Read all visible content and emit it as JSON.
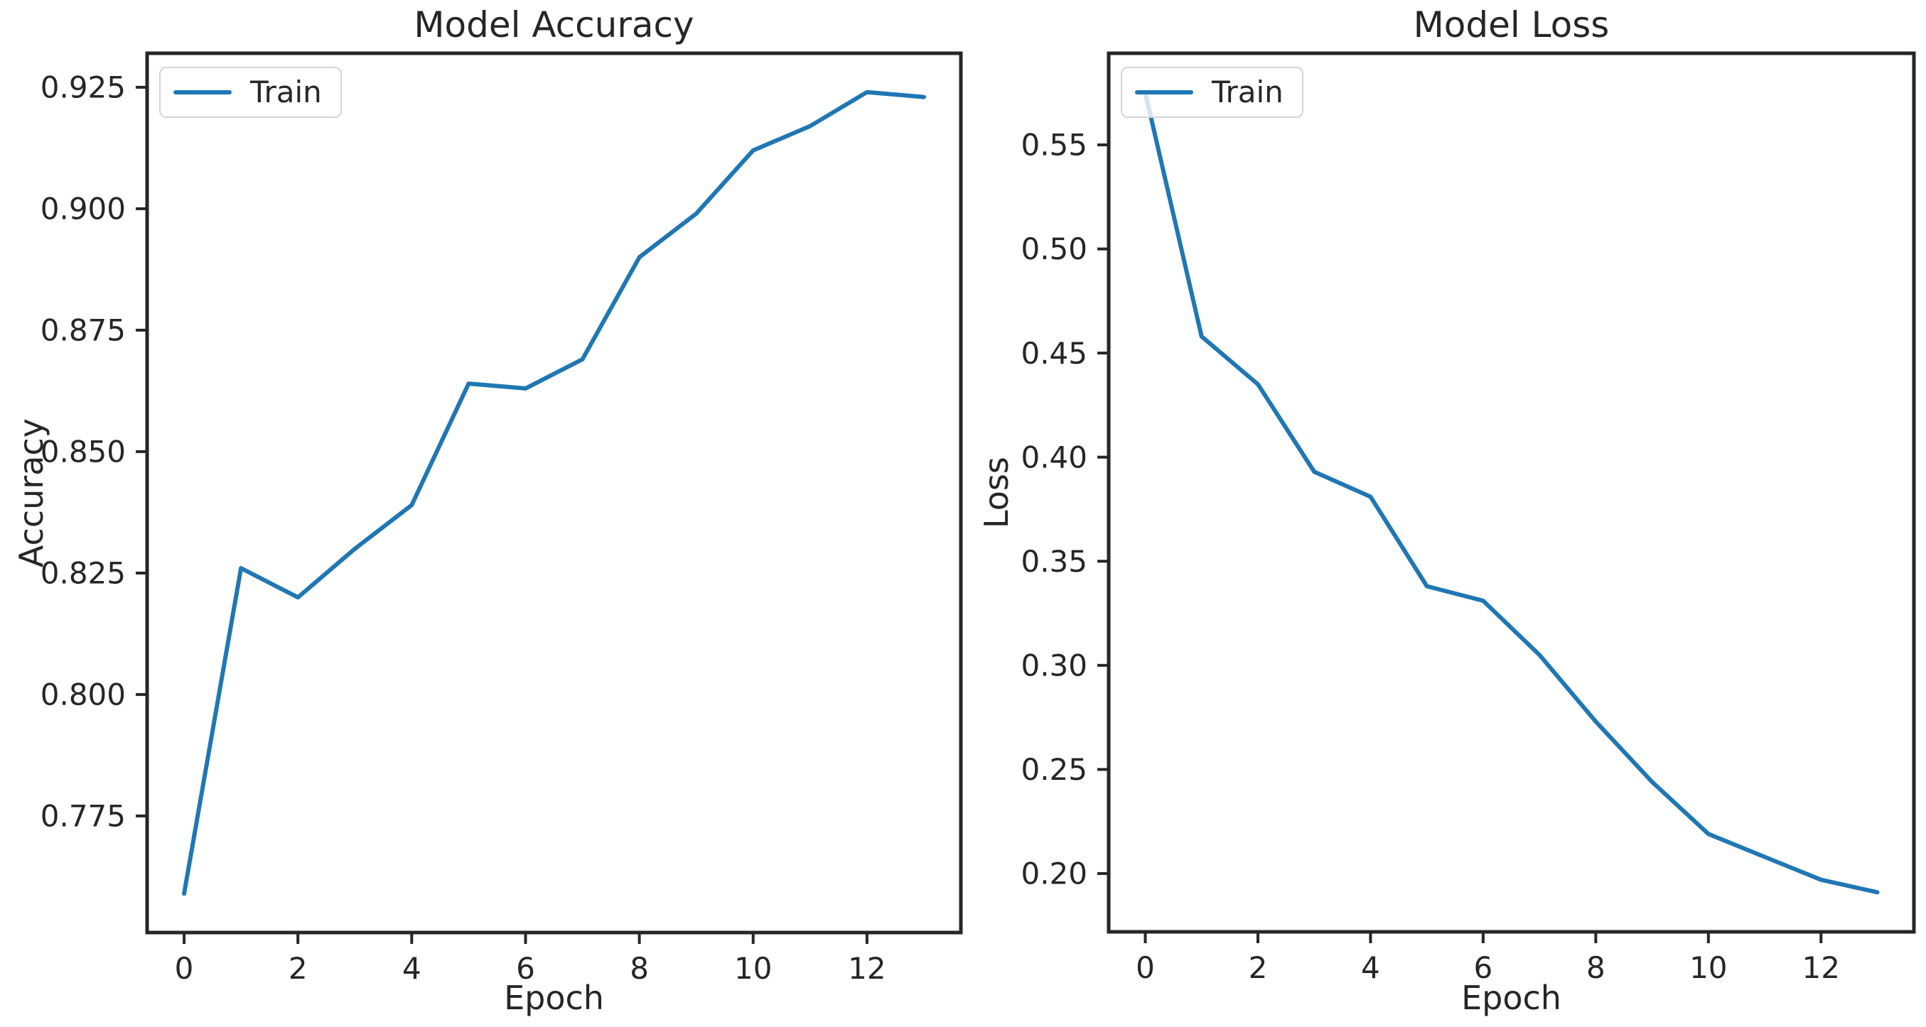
{
  "figure": {
    "background_color": "#ffffff",
    "accent_color": "#1f77b4",
    "axis_color": "#262626"
  },
  "chart_data": [
    {
      "type": "line",
      "title": "Model Accuracy",
      "xlabel": "Epoch",
      "ylabel": "Accuracy",
      "grid": false,
      "legend_position": "upper left",
      "x": [
        0,
        1,
        2,
        3,
        4,
        5,
        6,
        7,
        8,
        9,
        10,
        11,
        12,
        13
      ],
      "series": [
        {
          "name": "Train",
          "color": "#1f77b4",
          "values": [
            0.759,
            0.826,
            0.82,
            0.83,
            0.839,
            0.864,
            0.863,
            0.869,
            0.89,
            0.899,
            0.912,
            0.917,
            0.924,
            0.923
          ]
        }
      ],
      "xlim": [
        -0.65,
        13.65
      ],
      "ylim": [
        0.751,
        0.932
      ],
      "xtick_values": [
        0,
        2,
        4,
        6,
        8,
        10,
        12
      ],
      "xtick_labels": [
        "0",
        "2",
        "4",
        "6",
        "8",
        "10",
        "12"
      ],
      "ytick_values": [
        0.775,
        0.8,
        0.825,
        0.85,
        0.875,
        0.9,
        0.925
      ],
      "ytick_labels": [
        "0.775",
        "0.800",
        "0.825",
        "0.850",
        "0.875",
        "0.900",
        "0.925"
      ]
    },
    {
      "type": "line",
      "title": "Model Loss",
      "xlabel": "Epoch",
      "ylabel": "Loss",
      "grid": false,
      "legend_position": "upper left",
      "x": [
        0,
        1,
        2,
        3,
        4,
        5,
        6,
        7,
        8,
        9,
        10,
        11,
        12,
        13
      ],
      "series": [
        {
          "name": "Train",
          "color": "#1f77b4",
          "values": [
            0.575,
            0.458,
            0.435,
            0.393,
            0.381,
            0.338,
            0.331,
            0.305,
            0.273,
            0.244,
            0.219,
            0.208,
            0.197,
            0.191
          ]
        }
      ],
      "xlim": [
        -0.65,
        13.65
      ],
      "ylim": [
        0.172,
        0.594
      ],
      "xtick_values": [
        0,
        2,
        4,
        6,
        8,
        10,
        12
      ],
      "xtick_labels": [
        "0",
        "2",
        "4",
        "6",
        "8",
        "10",
        "12"
      ],
      "ytick_values": [
        0.2,
        0.25,
        0.3,
        0.35,
        0.4,
        0.45,
        0.5,
        0.55
      ],
      "ytick_labels": [
        "0.20",
        "0.25",
        "0.30",
        "0.35",
        "0.40",
        "0.45",
        "0.50",
        "0.55"
      ]
    }
  ]
}
